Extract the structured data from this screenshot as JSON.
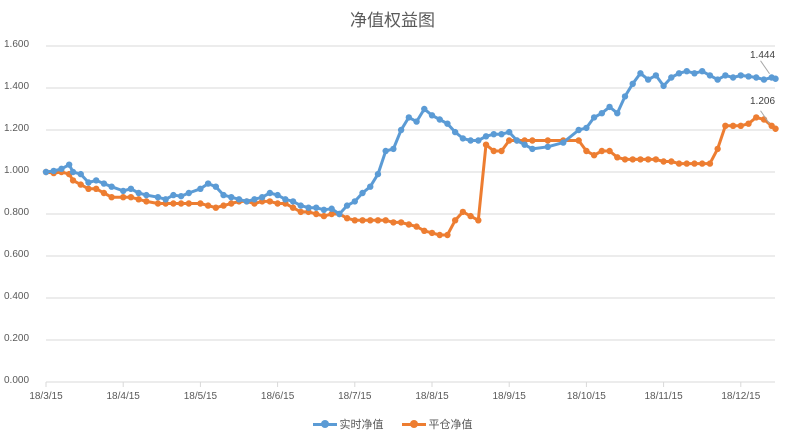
{
  "chart_data": {
    "type": "line",
    "title": "净值权益图",
    "xlabel": "",
    "ylabel": "",
    "ylim": [
      0,
      1.6
    ],
    "y_ticks": [
      "0.000",
      "0.200",
      "0.400",
      "0.600",
      "0.800",
      "1.000",
      "1.200",
      "1.400",
      "1.600"
    ],
    "x_ticks": [
      "18/3/15",
      "18/4/15",
      "18/5/15",
      "18/6/15",
      "18/7/15",
      "18/8/15",
      "18/9/15",
      "18/10/15",
      "18/11/15",
      "18/12/15"
    ],
    "grid": true,
    "legend_position": "bottom",
    "x_month_offsets": [
      0.0,
      0.1,
      0.2,
      0.3,
      0.35,
      0.45,
      0.55,
      0.65,
      0.75,
      0.85,
      1.0,
      1.1,
      1.2,
      1.3,
      1.45,
      1.55,
      1.65,
      1.75,
      1.85,
      2.0,
      2.1,
      2.2,
      2.3,
      2.4,
      2.5,
      2.6,
      2.7,
      2.8,
      2.9,
      3.0,
      3.1,
      3.2,
      3.3,
      3.4,
      3.5,
      3.6,
      3.7,
      3.8,
      3.9,
      4.0,
      4.1,
      4.2,
      4.3,
      4.4,
      4.5,
      4.6,
      4.7,
      4.8,
      4.9,
      5.0,
      5.1,
      5.2,
      5.3,
      5.4,
      5.5,
      5.6,
      5.7,
      5.8,
      5.9,
      6.0,
      6.1,
      6.2,
      6.3,
      6.5,
      6.7,
      6.9,
      7.0,
      7.1,
      7.2,
      7.3,
      7.4,
      7.5,
      7.6,
      7.7,
      7.8,
      7.9,
      8.0,
      8.1,
      8.2,
      8.3,
      8.4,
      8.5,
      8.6,
      8.7,
      8.8,
      8.9,
      9.0,
      9.1,
      9.2,
      9.3,
      9.4,
      9.45
    ],
    "series": [
      {
        "name": "实时净值",
        "color": "#5B9BD5",
        "values": [
          1.0,
          1.005,
          1.015,
          1.035,
          1.0,
          0.99,
          0.95,
          0.96,
          0.945,
          0.93,
          0.91,
          0.92,
          0.9,
          0.89,
          0.88,
          0.87,
          0.89,
          0.885,
          0.9,
          0.92,
          0.945,
          0.93,
          0.89,
          0.88,
          0.87,
          0.86,
          0.87,
          0.88,
          0.9,
          0.89,
          0.87,
          0.86,
          0.84,
          0.83,
          0.83,
          0.82,
          0.825,
          0.8,
          0.84,
          0.86,
          0.9,
          0.93,
          0.99,
          1.1,
          1.11,
          1.2,
          1.26,
          1.24,
          1.3,
          1.27,
          1.25,
          1.23,
          1.19,
          1.16,
          1.15,
          1.15,
          1.17,
          1.18,
          1.18,
          1.19,
          1.15,
          1.13,
          1.11,
          1.12,
          1.14,
          1.2,
          1.21,
          1.26,
          1.28,
          1.31,
          1.28,
          1.36,
          1.42,
          1.47,
          1.44,
          1.46,
          1.41,
          1.45,
          1.47,
          1.48,
          1.47,
          1.48,
          1.46,
          1.44,
          1.46,
          1.45,
          1.46,
          1.455,
          1.45,
          1.44,
          1.45,
          1.444
        ]
      },
      {
        "name": "平仓净值",
        "color": "#ED7D31",
        "values": [
          1.0,
          0.995,
          1.0,
          0.99,
          0.96,
          0.94,
          0.92,
          0.92,
          0.9,
          0.88,
          0.88,
          0.88,
          0.87,
          0.86,
          0.85,
          0.85,
          0.85,
          0.85,
          0.85,
          0.85,
          0.84,
          0.83,
          0.84,
          0.85,
          0.86,
          0.86,
          0.85,
          0.86,
          0.86,
          0.85,
          0.85,
          0.83,
          0.81,
          0.81,
          0.8,
          0.79,
          0.8,
          0.8,
          0.78,
          0.77,
          0.77,
          0.77,
          0.77,
          0.77,
          0.76,
          0.76,
          0.75,
          0.74,
          0.72,
          0.71,
          0.7,
          0.7,
          0.77,
          0.81,
          0.79,
          0.77,
          1.13,
          1.1,
          1.1,
          1.15,
          1.15,
          1.15,
          1.15,
          1.15,
          1.15,
          1.15,
          1.1,
          1.08,
          1.1,
          1.1,
          1.07,
          1.06,
          1.06,
          1.06,
          1.06,
          1.06,
          1.05,
          1.05,
          1.04,
          1.04,
          1.04,
          1.04,
          1.04,
          1.11,
          1.22,
          1.22,
          1.22,
          1.23,
          1.26,
          1.25,
          1.22,
          1.206
        ]
      }
    ],
    "data_labels": [
      {
        "series": "实时净值",
        "text": "1.444"
      },
      {
        "series": "平仓净值",
        "text": "1.206"
      }
    ]
  },
  "legend": {
    "items": [
      {
        "label": "实时净值",
        "color": "#5B9BD5"
      },
      {
        "label": "平仓净值",
        "color": "#ED7D31"
      }
    ]
  }
}
